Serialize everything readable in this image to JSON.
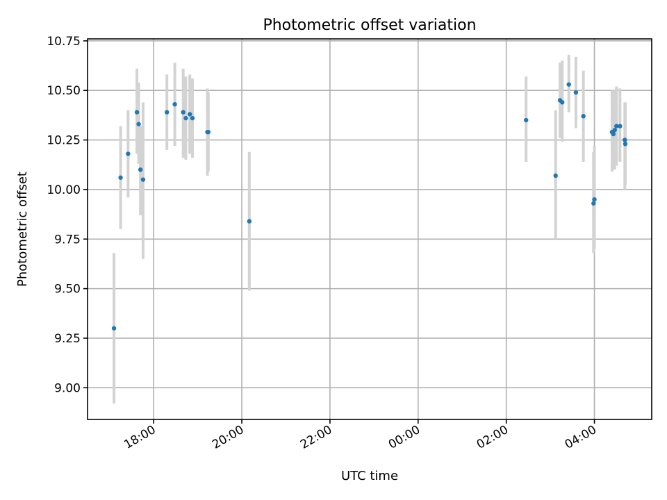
{
  "chart_data": {
    "type": "scatter",
    "title": "Photometric offset variation",
    "xlabel": "UTC time",
    "ylabel": "Photometric offset",
    "grid": true,
    "legend": "none",
    "xlim_hours_from_18h": [
      -1.5,
      11.3
    ],
    "ylim": [
      8.84,
      10.76
    ],
    "x_ticks": [
      {
        "h": 0,
        "label": "18:00"
      },
      {
        "h": 2,
        "label": "20:00"
      },
      {
        "h": 4,
        "label": "22:00"
      },
      {
        "h": 6,
        "label": "00:00"
      },
      {
        "h": 8,
        "label": "02:00"
      },
      {
        "h": 10,
        "label": "04:00"
      }
    ],
    "y_ticks": [
      {
        "v": 9.0,
        "label": "9.00"
      },
      {
        "v": 9.25,
        "label": "9.25"
      },
      {
        "v": 9.5,
        "label": "9.50"
      },
      {
        "v": 9.75,
        "label": "9.75"
      },
      {
        "v": 10.0,
        "label": "10.00"
      },
      {
        "v": 10.25,
        "label": "10.25"
      },
      {
        "v": 10.5,
        "label": "10.50"
      },
      {
        "v": 10.75,
        "label": "10.75"
      }
    ],
    "series": [
      {
        "name": "offset",
        "color": "#1f77b4",
        "errorbar_color": "#d3d3d3",
        "points": [
          {
            "h": -0.9,
            "y": 9.3,
            "lo": 8.92,
            "hi": 9.68
          },
          {
            "h": -0.75,
            "y": 10.06,
            "lo": 9.8,
            "hi": 10.32
          },
          {
            "h": -0.58,
            "y": 10.18,
            "lo": 9.96,
            "hi": 10.4
          },
          {
            "h": -0.38,
            "y": 10.39,
            "lo": 10.18,
            "hi": 10.61
          },
          {
            "h": -0.34,
            "y": 10.33,
            "lo": 10.13,
            "hi": 10.54
          },
          {
            "h": -0.3,
            "y": 10.1,
            "lo": 9.87,
            "hi": 10.32
          },
          {
            "h": -0.24,
            "y": 10.05,
            "lo": 9.65,
            "hi": 10.44
          },
          {
            "h": 0.3,
            "y": 10.39,
            "lo": 10.2,
            "hi": 10.58
          },
          {
            "h": 0.48,
            "y": 10.43,
            "lo": 10.22,
            "hi": 10.64
          },
          {
            "h": 0.67,
            "y": 10.39,
            "lo": 10.16,
            "hi": 10.61
          },
          {
            "h": 0.73,
            "y": 10.36,
            "lo": 10.15,
            "hi": 10.57
          },
          {
            "h": 0.82,
            "y": 10.38,
            "lo": 10.18,
            "hi": 10.58
          },
          {
            "h": 0.88,
            "y": 10.36,
            "lo": 10.16,
            "hi": 10.56
          },
          {
            "h": 1.22,
            "y": 10.29,
            "lo": 10.07,
            "hi": 10.51
          },
          {
            "h": 1.24,
            "y": 10.29,
            "lo": 10.09,
            "hi": 10.49
          },
          {
            "h": 2.17,
            "y": 9.84,
            "lo": 9.49,
            "hi": 10.19
          },
          {
            "h": 8.45,
            "y": 10.35,
            "lo": 10.14,
            "hi": 10.57
          },
          {
            "h": 9.12,
            "y": 10.07,
            "lo": 9.75,
            "hi": 10.4
          },
          {
            "h": 9.22,
            "y": 10.45,
            "lo": 10.26,
            "hi": 10.64
          },
          {
            "h": 9.27,
            "y": 10.44,
            "lo": 10.24,
            "hi": 10.65
          },
          {
            "h": 9.42,
            "y": 10.53,
            "lo": 10.39,
            "hi": 10.68
          },
          {
            "h": 9.58,
            "y": 10.49,
            "lo": 10.31,
            "hi": 10.67
          },
          {
            "h": 9.75,
            "y": 10.37,
            "lo": 10.14,
            "hi": 10.6
          },
          {
            "h": 9.98,
            "y": 9.93,
            "lo": 9.68,
            "hi": 10.19
          },
          {
            "h": 10.0,
            "y": 9.95,
            "lo": 9.7,
            "hi": 10.22
          },
          {
            "h": 10.4,
            "y": 10.29,
            "lo": 10.09,
            "hi": 10.5
          },
          {
            "h": 10.43,
            "y": 10.28,
            "lo": 10.1,
            "hi": 10.47
          },
          {
            "h": 10.46,
            "y": 10.3,
            "lo": 10.1,
            "hi": 10.5
          },
          {
            "h": 10.5,
            "y": 10.32,
            "lo": 10.12,
            "hi": 10.52
          },
          {
            "h": 10.58,
            "y": 10.32,
            "lo": 10.14,
            "hi": 10.51
          },
          {
            "h": 10.69,
            "y": 10.25,
            "lo": 10.0,
            "hi": 10.44
          },
          {
            "h": 10.7,
            "y": 10.23,
            "lo": 10.02,
            "hi": 10.44
          }
        ]
      }
    ]
  }
}
